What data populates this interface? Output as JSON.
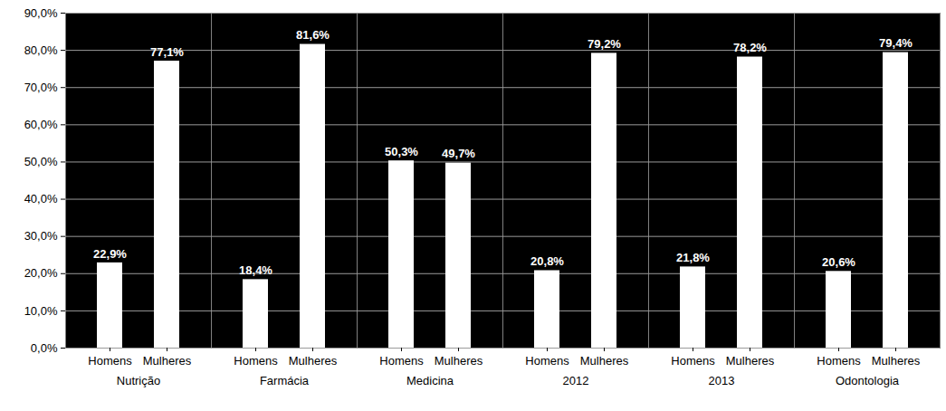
{
  "chart_data": {
    "type": "bar",
    "categories": [
      "Nutrição",
      "Farmácia",
      "Medicina",
      "2012",
      "2013",
      "Odontologia"
    ],
    "series": [
      {
        "name": "Homens",
        "color": "#ffffff",
        "values": [
          22.9,
          18.4,
          50.3,
          20.8,
          21.8,
          20.6
        ],
        "value_labels": [
          "22,9%",
          "18,4%",
          "50,3%",
          "20,8%",
          "21,8%",
          "20,6%"
        ]
      },
      {
        "name": "Mulheres",
        "color": "#ffffff",
        "values": [
          77.1,
          81.6,
          49.7,
          79.2,
          78.2,
          79.4
        ],
        "value_labels": [
          "77,1%",
          "81,6%",
          "49,7%",
          "79,2%",
          "78,2%",
          "79,4%"
        ]
      }
    ],
    "ylim": [
      0,
      90
    ],
    "yticks": [
      {
        "value": 0,
        "label": "0,0%"
      },
      {
        "value": 10,
        "label": "10,0%"
      },
      {
        "value": 20,
        "label": "20,0%"
      },
      {
        "value": 30,
        "label": "30,0%"
      },
      {
        "value": 40,
        "label": "40,0%"
      },
      {
        "value": 50,
        "label": "50,0%"
      },
      {
        "value": 60,
        "label": "60,0%"
      },
      {
        "value": 70,
        "label": "70,0%"
      },
      {
        "value": 80,
        "label": "80,0%"
      },
      {
        "value": 90,
        "label": "90,0%"
      }
    ],
    "grid": true,
    "data_labels": true
  }
}
